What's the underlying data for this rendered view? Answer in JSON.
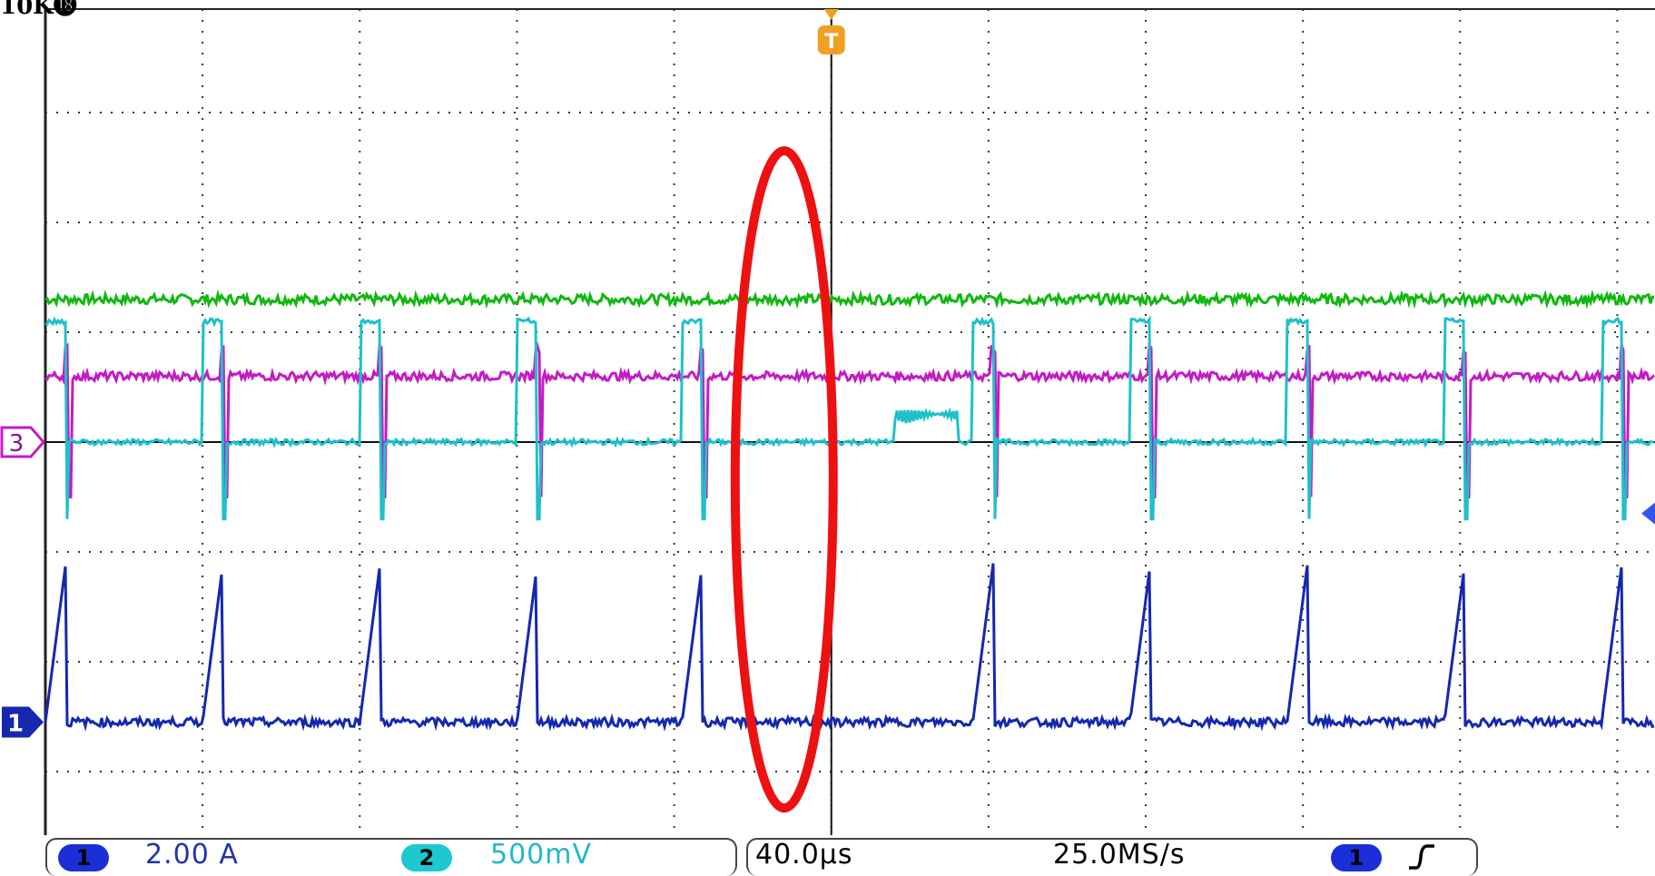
{
  "header": {
    "clipped_label": "10K⓲"
  },
  "status_bar": {
    "ch1": {
      "badge": "1",
      "scale": "2.00 A",
      "color": "#1a2fd8",
      "text_color": "#2233aa"
    },
    "ch2": {
      "badge": "2",
      "scale": "500mV",
      "color": "#1ec8d0",
      "text_color": "#22b8c8"
    },
    "timebase": "40.0µs",
    "sample_rate": "25.0MS/s",
    "trigger": {
      "badge": "1",
      "slope_icon": "rising-edge-icon"
    }
  },
  "markers": {
    "trigger_marker": "T",
    "ch3_marker": "3",
    "ch1_marker": "1"
  },
  "colors": {
    "grid": "#333333",
    "green_trace": "#11b811",
    "magenta_trace": "#c21cc4",
    "cyan_trace": "#20c0c8",
    "blue_trace": "#1428b0",
    "trigger": "#f0a020",
    "highlight": "#ee1111"
  },
  "chart_data": {
    "type": "line",
    "title": "",
    "grid": {
      "horizontal_divisions": 10,
      "vertical_divisions": 8,
      "dotted": true
    },
    "x_unit_per_div": "40.0µs",
    "ch1_scale": "2.00 A",
    "ch2_scale": "500mV",
    "pulse_times_div": [
      0.0,
      1.0,
      2.0,
      3.0,
      4.05,
      5.9,
      6.9,
      7.9,
      8.9,
      9.9
    ],
    "gap_between_div": [
      4.05,
      5.9
    ],
    "ringing_div": [
      5.4,
      5.8
    ],
    "series": [
      {
        "color": "green",
        "level_div": 1.3,
        "noise_div": 0.04
      },
      {
        "color": "magenta",
        "level_div": 0.6,
        "noise_div": 0.04
      },
      {
        "color": "cyan",
        "level_div": 0.0,
        "high_div": 1.25,
        "low_div": -0.7
      },
      {
        "color": "blue",
        "level_div": -3.0,
        "peak_div": -1.2
      }
    ],
    "annotation": {
      "type": "ellipse",
      "color": "red",
      "center_div": [
        4.7,
        -0.34
      ]
    }
  }
}
